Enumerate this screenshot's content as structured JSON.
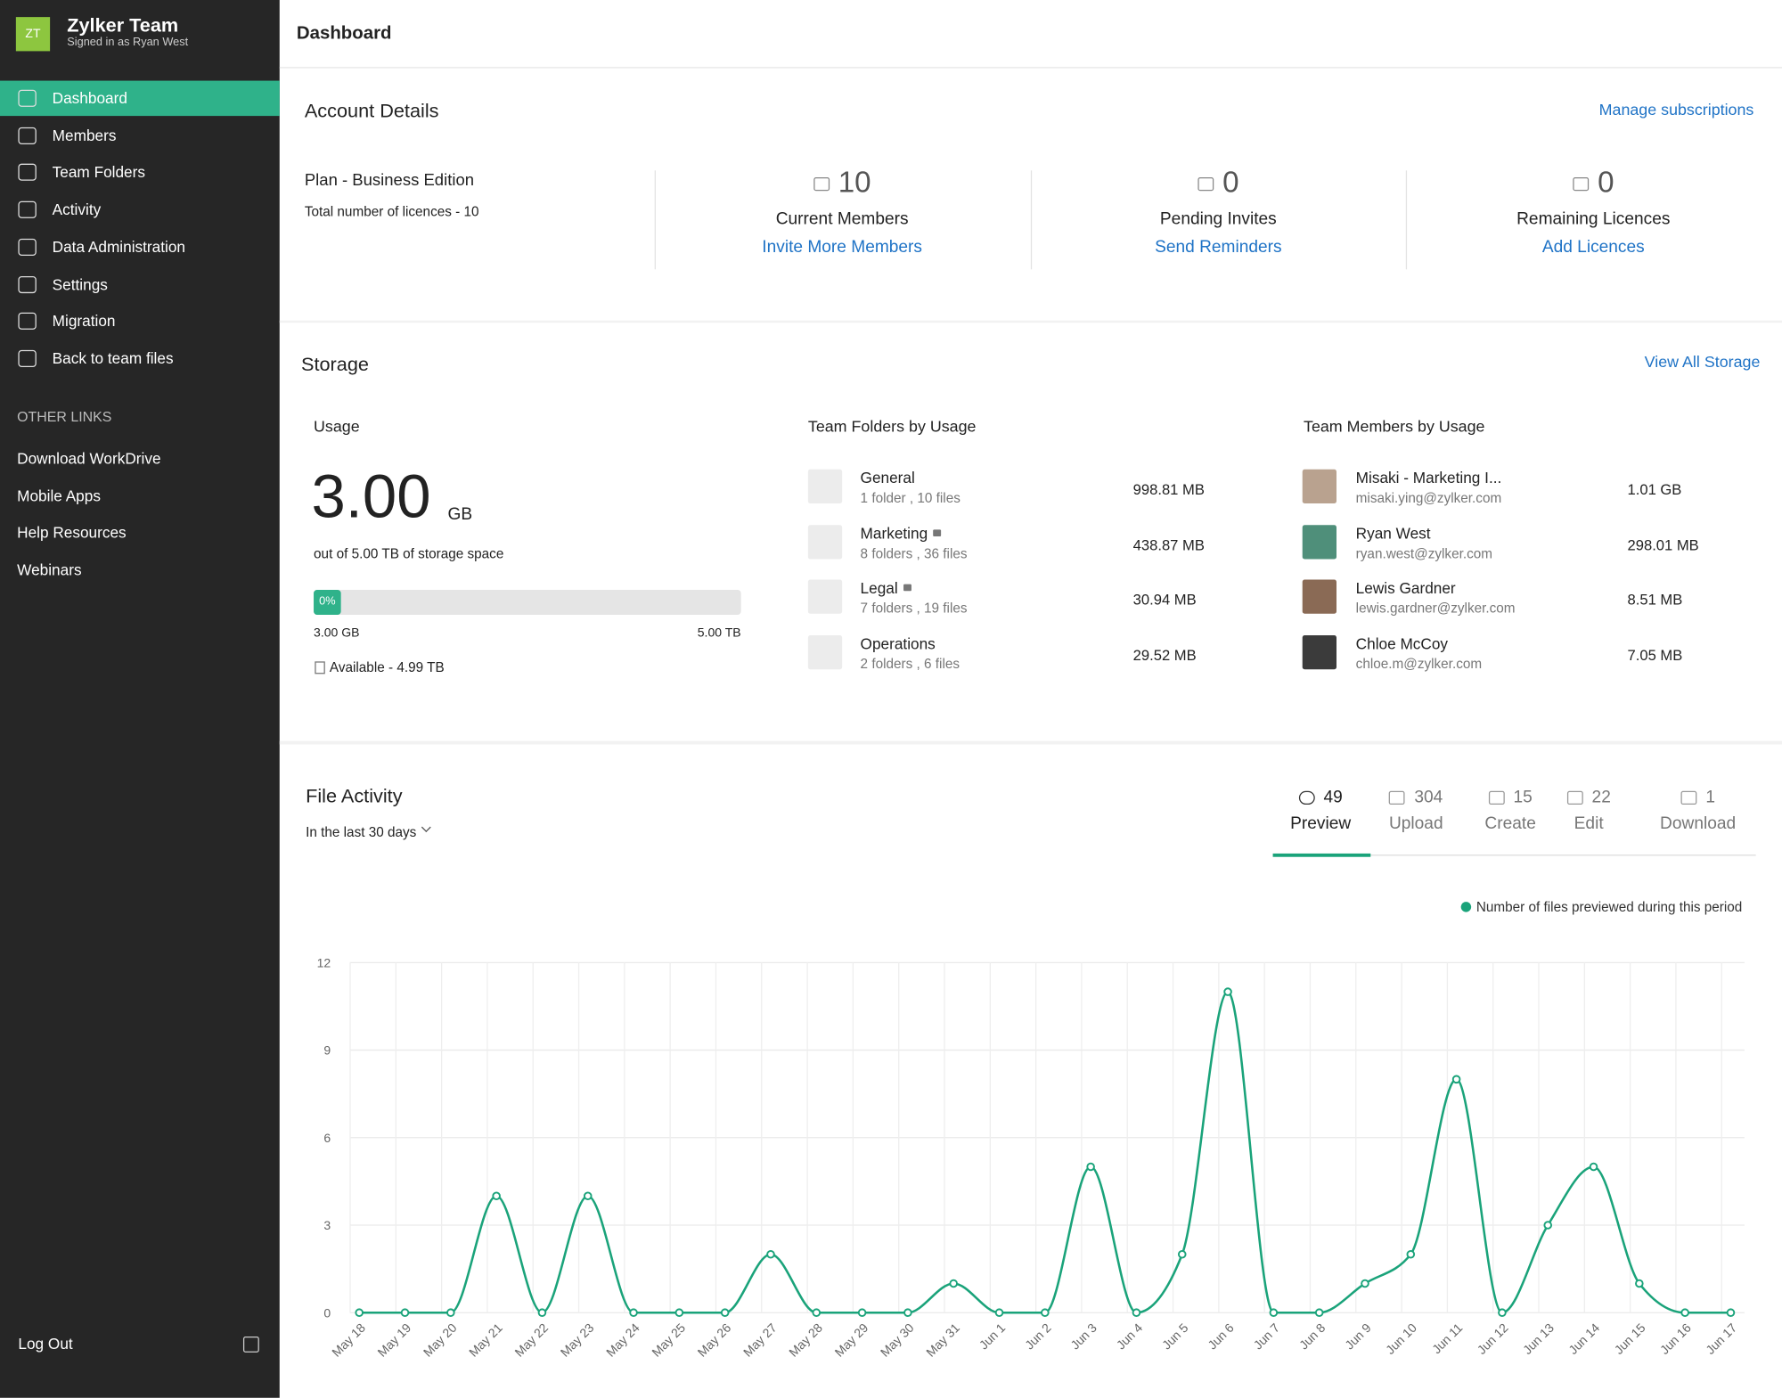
{
  "sidebar": {
    "avatar": "ZT",
    "team": "Zylker Team",
    "signed_in": "Signed in as Ryan West",
    "nav": [
      "Dashboard",
      "Members",
      "Team Folders",
      "Activity",
      "Data Administration",
      "Settings",
      "Migration",
      "Back to team files"
    ],
    "active_nav": 0,
    "other_links_title": "OTHER LINKS",
    "other_links": [
      "Download WorkDrive",
      "Mobile Apps",
      "Help Resources",
      "Webinars"
    ],
    "logout": "Log Out"
  },
  "header": {
    "title": "Dashboard"
  },
  "account": {
    "title": "Account Details",
    "manage": "Manage subscriptions",
    "plan": "Plan - Business Edition",
    "licences": "Total number of licences - 10",
    "stats": [
      {
        "value": 10,
        "label": "Current Members",
        "link": "Invite More Members"
      },
      {
        "value": 0,
        "label": "Pending Invites",
        "link": "Send Reminders"
      },
      {
        "value": 0,
        "label": "Remaining Licences",
        "link": "Add Licences"
      }
    ]
  },
  "storage": {
    "title": "Storage",
    "view_all": "View All Storage",
    "usage_title": "Usage",
    "used": "3.00",
    "unit": "GB",
    "out_of": "out of 5.00 TB of storage space",
    "percent": "0%",
    "bar_left": "3.00 GB",
    "bar_right": "5.00 TB",
    "available": "Available - 4.99 TB",
    "folders_title": "Team Folders by Usage",
    "folders": [
      {
        "name": "General",
        "meta": "1 folder , 10 files",
        "size": "998.81 MB",
        "locked": false
      },
      {
        "name": "Marketing",
        "meta": "8 folders , 36 files",
        "size": "438.87 MB",
        "locked": true
      },
      {
        "name": "Legal",
        "meta": "7 folders , 19 files",
        "size": "30.94 MB",
        "locked": true
      },
      {
        "name": "Operations",
        "meta": "2 folders , 6 files",
        "size": "29.52 MB",
        "locked": false
      }
    ],
    "members_title": "Team Members by Usage",
    "members": [
      {
        "name": "Misaki - Marketing I...",
        "email": "misaki.ying@zylker.com",
        "size": "1.01 GB"
      },
      {
        "name": "Ryan West",
        "email": "ryan.west@zylker.com",
        "size": "298.01 MB"
      },
      {
        "name": "Lewis Gardner",
        "email": "lewis.gardner@zylker.com",
        "size": "8.51 MB"
      },
      {
        "name": "Chloe McCoy",
        "email": "chloe.m@zylker.com",
        "size": "7.05 MB"
      }
    ]
  },
  "file_activity": {
    "title": "File Activity",
    "period": "In the last 30 days",
    "tabs": [
      {
        "count": 49,
        "label": "Preview"
      },
      {
        "count": 304,
        "label": "Upload"
      },
      {
        "count": 15,
        "label": "Create"
      },
      {
        "count": 22,
        "label": "Edit"
      },
      {
        "count": 1,
        "label": "Download"
      }
    ],
    "active_tab": 0
  },
  "chart_data": {
    "type": "line",
    "categories": [
      "May 18",
      "May 19",
      "May 20",
      "May 21",
      "May 22",
      "May 23",
      "May 24",
      "May 25",
      "May 26",
      "May 27",
      "May 28",
      "May 29",
      "May 30",
      "May 31",
      "Jun 1",
      "Jun 2",
      "Jun 3",
      "Jun 4",
      "Jun 5",
      "Jun 6",
      "Jun 7",
      "Jun 8",
      "Jun 9",
      "Jun 10",
      "Jun 11",
      "Jun 12",
      "Jun 13",
      "Jun 14",
      "Jun 15",
      "Jun 16",
      "Jun 17"
    ],
    "series": [
      {
        "name": "Number of files previewed during this period",
        "color": "#1aa37a",
        "values": [
          0,
          0,
          0,
          4,
          0,
          4,
          0,
          0,
          0,
          2,
          0,
          0,
          0,
          1,
          0,
          0,
          5,
          0,
          2,
          11,
          0,
          0,
          1,
          2,
          8,
          0,
          3,
          5,
          1,
          0,
          0
        ]
      }
    ],
    "ylim": [
      0,
      12
    ],
    "yticks": [
      0,
      3,
      6,
      9,
      12
    ],
    "grid": true,
    "legend": "top-right"
  }
}
